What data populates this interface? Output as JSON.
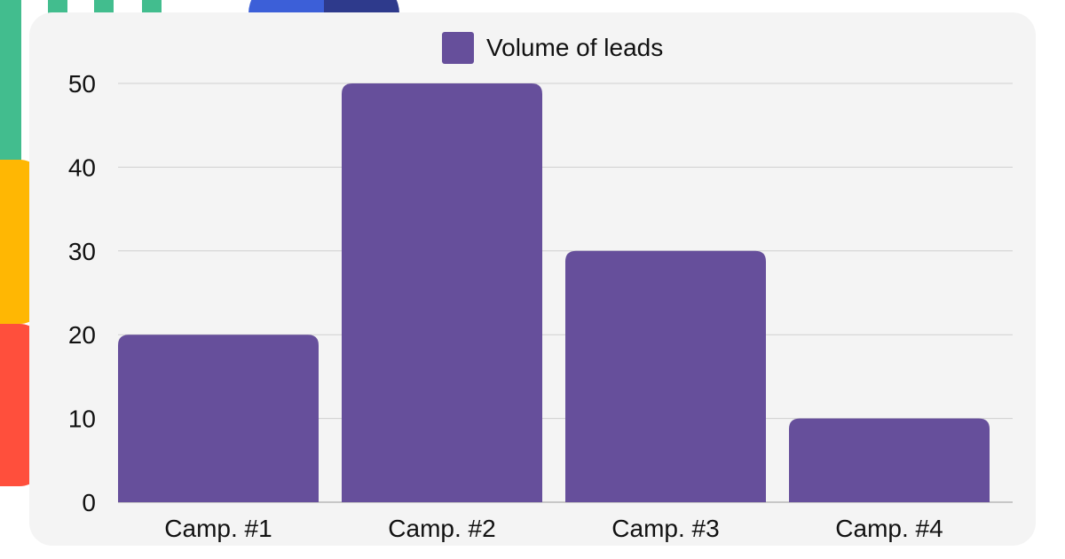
{
  "chart_data": {
    "type": "bar",
    "categories": [
      "Camp. #1",
      "Camp. #2",
      "Camp. #3",
      "Camp. #4"
    ],
    "series": [
      {
        "name": "Volume of leads",
        "values": [
          20,
          50,
          30,
          10
        ]
      }
    ],
    "title": "",
    "xlabel": "",
    "ylabel": "",
    "ylim": [
      0,
      50
    ],
    "yticks": [
      0,
      10,
      20,
      30,
      40,
      50
    ],
    "grid": true,
    "legend_position": "top-center"
  },
  "colors": {
    "bar": "#664f9b",
    "grid": "#cfcfcf",
    "card_background": "#f4f4f4",
    "text": "#111111"
  }
}
